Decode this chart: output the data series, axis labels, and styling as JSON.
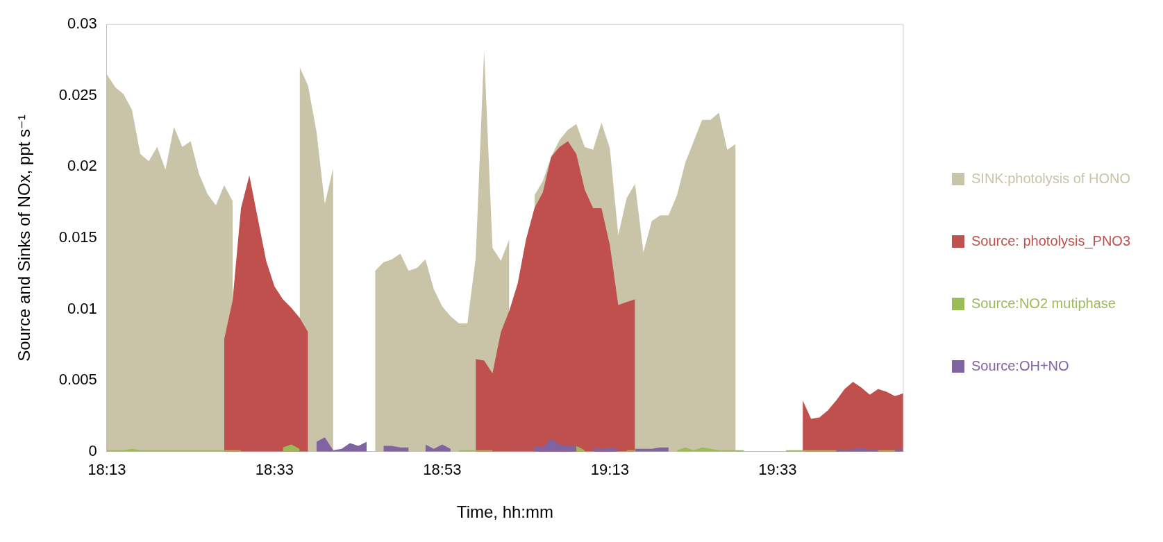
{
  "chart_data": {
    "type": "area",
    "xlabel": "Time, hh:mm",
    "ylabel": "Source and Sinks of NOx, ppt s⁻¹",
    "categories": [
      "18:13",
      null,
      null,
      null,
      null,
      null,
      null,
      null,
      null,
      null,
      null,
      null,
      null,
      null,
      null,
      null,
      null,
      null,
      null,
      null,
      "18:33",
      null,
      null,
      null,
      null,
      null,
      null,
      null,
      null,
      null,
      null,
      null,
      null,
      null,
      null,
      null,
      null,
      null,
      null,
      null,
      "18:53",
      null,
      null,
      null,
      null,
      null,
      null,
      null,
      null,
      null,
      null,
      null,
      null,
      null,
      null,
      null,
      null,
      null,
      null,
      null,
      "19:13",
      null,
      null,
      null,
      null,
      null,
      null,
      null,
      null,
      null,
      null,
      null,
      null,
      null,
      null,
      null,
      null,
      null,
      null,
      null,
      "19:33",
      null,
      null,
      null,
      null,
      null,
      null,
      null,
      null,
      null,
      null,
      null,
      null,
      null,
      null,
      null
    ],
    "series": [
      {
        "name": "SINK:photolysis of HONO",
        "color": "#c9c3a8",
        "values": [
          0.0265,
          0.0256,
          0.0251,
          0.024,
          0.0209,
          0.0204,
          0.0214,
          0.0198,
          0.0228,
          0.0214,
          0.0218,
          0.0195,
          0.0181,
          0.0173,
          0.0187,
          0.0176,
          null,
          null,
          null,
          null,
          null,
          null,
          null,
          0.027,
          0.0257,
          0.0225,
          0.0174,
          0.0199,
          null,
          null,
          null,
          null,
          0.0127,
          0.0133,
          0.0135,
          0.0139,
          0.0127,
          0.0129,
          0.0135,
          0.0114,
          0.0102,
          0.0095,
          0.009,
          0.009,
          0.0136,
          0.0282,
          0.0143,
          0.0134,
          0.0149,
          null,
          null,
          0.018,
          0.019,
          0.0207,
          0.0219,
          0.0226,
          0.023,
          0.0214,
          0.0212,
          0.0231,
          0.0213,
          0.0152,
          0.0178,
          0.0188,
          0.014,
          0.0162,
          0.0166,
          0.0166,
          0.018,
          0.0203,
          0.0218,
          0.0233,
          0.0233,
          0.0238,
          0.0212,
          0.0216,
          null,
          null,
          null,
          null,
          null,
          null,
          null,
          null,
          null,
          null,
          null,
          null,
          null,
          null,
          null,
          null,
          null,
          null,
          null,
          null
        ]
      },
      {
        "name": "Source: photolysis_PNO3",
        "color": "#c0504d",
        "values": [
          null,
          null,
          null,
          null,
          null,
          null,
          null,
          null,
          null,
          null,
          null,
          null,
          null,
          null,
          0.0079,
          0.0106,
          0.0171,
          0.0194,
          0.0164,
          0.0134,
          0.0116,
          0.0107,
          0.0101,
          0.0094,
          0.0084,
          null,
          null,
          null,
          null,
          null,
          null,
          null,
          null,
          null,
          null,
          null,
          null,
          null,
          null,
          null,
          null,
          null,
          null,
          null,
          0.0065,
          0.0064,
          0.0055,
          0.0084,
          0.0099,
          0.0118,
          0.0149,
          0.0171,
          0.0182,
          0.0207,
          0.0214,
          0.0218,
          0.0209,
          0.0184,
          0.0171,
          0.0171,
          0.0145,
          0.0103,
          0.0105,
          0.0107,
          null,
          null,
          null,
          null,
          null,
          null,
          null,
          null,
          null,
          null,
          null,
          null,
          null,
          null,
          null,
          null,
          null,
          null,
          null,
          0.0036,
          0.0023,
          0.0024,
          0.0029,
          0.0036,
          0.0044,
          0.0049,
          0.0045,
          0.004,
          0.0044,
          0.0042,
          0.0039,
          0.0041
        ]
      },
      {
        "name": "Source:NO2 mutiphase",
        "color": "#9bbb59",
        "values": [
          0.0001,
          0.0001,
          0.0001,
          0.0002,
          0.0001,
          0.0001,
          0.0001,
          0.0001,
          0.0001,
          0.0001,
          0.0001,
          0.0001,
          0.0001,
          0.0001,
          0.0001,
          0.0001,
          0.0001,
          null,
          null,
          null,
          null,
          0.0003,
          0.0005,
          0.0002,
          null,
          null,
          null,
          null,
          null,
          null,
          null,
          null,
          null,
          null,
          null,
          null,
          null,
          null,
          null,
          null,
          null,
          null,
          0.0001,
          0.0001,
          0.0001,
          0.0001,
          0.0001,
          null,
          null,
          null,
          null,
          null,
          null,
          null,
          null,
          null,
          0.0004,
          0.0001,
          null,
          null,
          null,
          null,
          0.0001,
          0.0001,
          null,
          null,
          null,
          null,
          0.0001,
          0.0003,
          0.0001,
          0.0003,
          0.0002,
          0.0001,
          0.0001,
          0.0001,
          0.0001,
          null,
          null,
          null,
          null,
          0.0001,
          0.0001,
          0.0001,
          0.0001,
          0.0001,
          0.0001,
          0.0001,
          0.0001,
          0.0001,
          0.0001,
          0.0001,
          0.0001,
          0.0001,
          0.0001,
          0.0001
        ]
      },
      {
        "name": "Source:OH+NO",
        "color": "#8064a2",
        "values": [
          null,
          null,
          null,
          null,
          null,
          null,
          null,
          null,
          null,
          null,
          null,
          null,
          null,
          null,
          null,
          null,
          null,
          null,
          null,
          null,
          null,
          null,
          null,
          null,
          null,
          0.0007,
          0.001,
          0.0001,
          0.0002,
          0.0006,
          0.0004,
          0.0007,
          null,
          0.0004,
          0.0004,
          0.0003,
          0.0003,
          null,
          0.0005,
          0.0002,
          0.0005,
          0.0002,
          null,
          null,
          null,
          null,
          null,
          null,
          null,
          null,
          null,
          0.0004,
          0.0003,
          0.0009,
          0.0005,
          0.0004,
          0.0004,
          null,
          0.0003,
          0.0002,
          0.0003,
          0.0002,
          null,
          0.0002,
          0.0002,
          0.0002,
          0.0003,
          0.0003,
          null,
          null,
          null,
          null,
          null,
          null,
          null,
          null,
          null,
          null,
          null,
          null,
          null,
          null,
          null,
          null,
          null,
          null,
          null,
          0.0002,
          0.0001,
          0.0002,
          0.0003,
          0.0001,
          0.0002,
          null,
          0.0002,
          0.0002
        ]
      }
    ],
    "ylim": [
      0,
      0.03
    ],
    "yticks": [
      0,
      0.005,
      0.01,
      0.015,
      0.02,
      0.025,
      0.03
    ],
    "grid": false,
    "legend": "right"
  }
}
